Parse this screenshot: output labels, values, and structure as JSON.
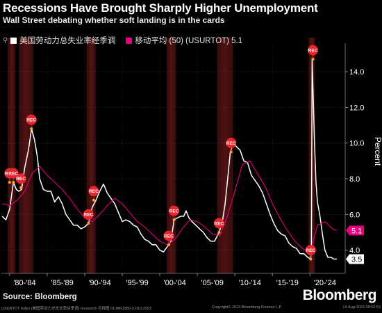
{
  "header": {
    "title": "Recessions Have Brought Sharply Higher Unemployment",
    "subtitle": "Wall Street debating whether soft landing is in the cards"
  },
  "legend": {
    "series_1": "美国劳动力总失业率经季调",
    "series_2": "移动平均 (50) (USURTOT) 5.1"
  },
  "colors": {
    "background": "#000000",
    "unemployment_line": "#ffffff",
    "moving_average": "#e6007e",
    "recession_band": "#5a1414",
    "rec_marker": "#e8242c",
    "rec_dot": "#f5a623"
  },
  "brand": "Bloomberg",
  "source": "Source: Bloomberg",
  "footer": {
    "left": "USURTOT Index (美国劳动力总失业率经季调) recession 月线图 01JAN1980-31JUL2023",
    "middle": "Copyright© 2023 Bloomberg Finance L.P.",
    "right": "14-Aug-2023 09:52:53"
  },
  "chart_data": {
    "type": "line",
    "title": "Recessions Have Brought Sharply Higher Unemployment",
    "ylabel": "Percent",
    "xlim": [
      1978.9,
      2024.7
    ],
    "ylim": [
      2.7,
      15.6
    ],
    "y_ticks": [
      4.0,
      6.0,
      8.0,
      10.0,
      12.0,
      14.0
    ],
    "x_ticks": [
      {
        "label": "'80-'84",
        "x": 1982.0
      },
      {
        "label": "'85-'89",
        "x": 1987.0
      },
      {
        "label": "'90-'94",
        "x": 1992.0
      },
      {
        "label": "'95-'99",
        "x": 1997.0
      },
      {
        "label": "'00-'04",
        "x": 2002.0
      },
      {
        "label": "'05-'09",
        "x": 2007.0
      },
      {
        "label": "'10-'14",
        "x": 2012.0
      },
      {
        "label": "'15-'19",
        "x": 2017.0
      },
      {
        "label": "'20-'24",
        "x": 2022.0
      }
    ],
    "grid": true,
    "legend_position": "top-left",
    "recessions": [
      {
        "start": 1980.0,
        "end": 1980.5
      },
      {
        "start": 1981.5,
        "end": 1982.9
      },
      {
        "start": 1990.5,
        "end": 1991.2
      },
      {
        "start": 2001.2,
        "end": 2001.9
      },
      {
        "start": 2007.9,
        "end": 2009.5
      },
      {
        "start": 2020.1,
        "end": 2020.4
      }
    ],
    "rec_markers": [
      {
        "x": 1980.0,
        "y": 7.8,
        "label": "REC"
      },
      {
        "x": 1980.5,
        "y": 7.8,
        "label": "REC"
      },
      {
        "x": 1981.5,
        "y": 7.5,
        "label": "REC"
      },
      {
        "x": 1982.9,
        "y": 10.8,
        "label": "REC"
      },
      {
        "x": 1990.5,
        "y": 5.5,
        "label": "REC"
      },
      {
        "x": 1991.2,
        "y": 6.8,
        "label": "REC"
      },
      {
        "x": 2001.2,
        "y": 4.3,
        "label": "REC"
      },
      {
        "x": 2001.9,
        "y": 5.7,
        "label": "REC"
      },
      {
        "x": 2007.9,
        "y": 5.0,
        "label": "REC"
      },
      {
        "x": 2009.5,
        "y": 9.5,
        "label": "REC"
      },
      {
        "x": 2020.1,
        "y": 3.5,
        "label": "REC"
      },
      {
        "x": 2020.4,
        "y": 14.7,
        "label": "REC"
      }
    ],
    "series": [
      {
        "name": "美国劳动力总失业率经季调",
        "color": "#ffffff",
        "last_value": 3.5,
        "points": [
          [
            1979.0,
            5.9
          ],
          [
            1979.5,
            5.7
          ],
          [
            1980.0,
            6.3
          ],
          [
            1980.5,
            7.8
          ],
          [
            1980.9,
            7.4
          ],
          [
            1981.2,
            7.3
          ],
          [
            1981.6,
            7.4
          ],
          [
            1982.0,
            8.6
          ],
          [
            1982.5,
            9.6
          ],
          [
            1982.92,
            10.8
          ],
          [
            1983.3,
            10.2
          ],
          [
            1983.7,
            9.2
          ],
          [
            1984.0,
            8.0
          ],
          [
            1984.5,
            7.4
          ],
          [
            1985.0,
            7.3
          ],
          [
            1985.5,
            7.3
          ],
          [
            1986.0,
            6.7
          ],
          [
            1986.5,
            7.0
          ],
          [
            1987.0,
            6.6
          ],
          [
            1987.5,
            6.0
          ],
          [
            1988.0,
            5.7
          ],
          [
            1988.5,
            5.4
          ],
          [
            1989.0,
            5.4
          ],
          [
            1989.5,
            5.2
          ],
          [
            1990.0,
            5.3
          ],
          [
            1990.5,
            5.5
          ],
          [
            1991.0,
            6.4
          ],
          [
            1991.5,
            6.8
          ],
          [
            1992.0,
            7.3
          ],
          [
            1992.5,
            7.7
          ],
          [
            1993.0,
            7.2
          ],
          [
            1993.5,
            6.9
          ],
          [
            1994.0,
            6.6
          ],
          [
            1994.5,
            6.1
          ],
          [
            1995.0,
            5.6
          ],
          [
            1995.5,
            5.7
          ],
          [
            1996.0,
            5.6
          ],
          [
            1996.5,
            5.4
          ],
          [
            1997.0,
            5.3
          ],
          [
            1997.5,
            4.9
          ],
          [
            1998.0,
            4.6
          ],
          [
            1998.5,
            4.5
          ],
          [
            1999.0,
            4.3
          ],
          [
            1999.5,
            4.3
          ],
          [
            2000.0,
            4.0
          ],
          [
            2000.5,
            3.9
          ],
          [
            2001.0,
            4.2
          ],
          [
            2001.5,
            4.5
          ],
          [
            2001.9,
            5.7
          ],
          [
            2002.3,
            5.8
          ],
          [
            2002.8,
            5.9
          ],
          [
            2003.2,
            5.9
          ],
          [
            2003.5,
            6.2
          ],
          [
            2003.9,
            5.8
          ],
          [
            2004.3,
            5.6
          ],
          [
            2004.8,
            5.4
          ],
          [
            2005.3,
            5.2
          ],
          [
            2005.8,
            5.0
          ],
          [
            2006.3,
            4.7
          ],
          [
            2006.8,
            4.5
          ],
          [
            2007.3,
            4.5
          ],
          [
            2007.9,
            5.0
          ],
          [
            2008.3,
            5.5
          ],
          [
            2008.7,
            6.6
          ],
          [
            2009.0,
            7.8
          ],
          [
            2009.4,
            9.5
          ],
          [
            2009.8,
            10.0
          ],
          [
            2010.2,
            9.8
          ],
          [
            2010.7,
            9.6
          ],
          [
            2011.2,
            9.0
          ],
          [
            2011.7,
            8.9
          ],
          [
            2012.2,
            8.2
          ],
          [
            2012.7,
            7.9
          ],
          [
            2013.2,
            7.6
          ],
          [
            2013.7,
            7.2
          ],
          [
            2014.2,
            6.6
          ],
          [
            2014.7,
            6.0
          ],
          [
            2015.2,
            5.5
          ],
          [
            2015.7,
            5.1
          ],
          [
            2016.2,
            4.9
          ],
          [
            2016.7,
            4.8
          ],
          [
            2017.2,
            4.4
          ],
          [
            2017.7,
            4.2
          ],
          [
            2018.2,
            4.1
          ],
          [
            2018.7,
            3.8
          ],
          [
            2019.2,
            3.8
          ],
          [
            2019.7,
            3.6
          ],
          [
            2020.1,
            3.5
          ],
          [
            2020.2,
            4.4
          ],
          [
            2020.3,
            14.7
          ],
          [
            2020.4,
            13.2
          ],
          [
            2020.6,
            10.2
          ],
          [
            2020.8,
            7.9
          ],
          [
            2021.0,
            6.7
          ],
          [
            2021.3,
            6.0
          ],
          [
            2021.7,
            4.8
          ],
          [
            2022.0,
            4.0
          ],
          [
            2022.4,
            3.6
          ],
          [
            2022.8,
            3.6
          ],
          [
            2023.2,
            3.5
          ],
          [
            2023.58,
            3.5
          ]
        ]
      },
      {
        "name": "移动平均 (50) (USURTOT)",
        "color": "#e6007e",
        "last_value": 5.1,
        "points": [
          [
            1979.0,
            6.6
          ],
          [
            1980.0,
            6.5
          ],
          [
            1981.0,
            6.8
          ],
          [
            1982.0,
            7.3
          ],
          [
            1983.0,
            8.3
          ],
          [
            1984.0,
            8.7
          ],
          [
            1985.0,
            8.2
          ],
          [
            1986.0,
            7.8
          ],
          [
            1987.0,
            7.4
          ],
          [
            1988.0,
            6.9
          ],
          [
            1989.0,
            6.3
          ],
          [
            1990.0,
            5.8
          ],
          [
            1991.0,
            5.6
          ],
          [
            1992.0,
            6.0
          ],
          [
            1993.0,
            6.5
          ],
          [
            1994.0,
            6.9
          ],
          [
            1995.0,
            6.6
          ],
          [
            1996.0,
            6.1
          ],
          [
            1997.0,
            5.6
          ],
          [
            1998.0,
            5.3
          ],
          [
            1999.0,
            4.9
          ],
          [
            2000.0,
            4.5
          ],
          [
            2001.0,
            4.3
          ],
          [
            2002.0,
            4.6
          ],
          [
            2003.0,
            5.2
          ],
          [
            2004.0,
            5.7
          ],
          [
            2005.0,
            5.6
          ],
          [
            2006.0,
            5.3
          ],
          [
            2007.0,
            4.9
          ],
          [
            2008.0,
            4.8
          ],
          [
            2009.0,
            5.9
          ],
          [
            2010.0,
            7.3
          ],
          [
            2011.0,
            8.8
          ],
          [
            2012.0,
            9.0
          ],
          [
            2013.0,
            8.3
          ],
          [
            2014.0,
            7.6
          ],
          [
            2015.0,
            6.6
          ],
          [
            2016.0,
            5.8
          ],
          [
            2017.0,
            5.1
          ],
          [
            2018.0,
            4.5
          ],
          [
            2019.0,
            4.1
          ],
          [
            2020.0,
            3.8
          ],
          [
            2021.0,
            5.4
          ],
          [
            2022.0,
            5.6
          ],
          [
            2023.0,
            5.2
          ],
          [
            2023.58,
            5.1
          ]
        ]
      }
    ]
  }
}
